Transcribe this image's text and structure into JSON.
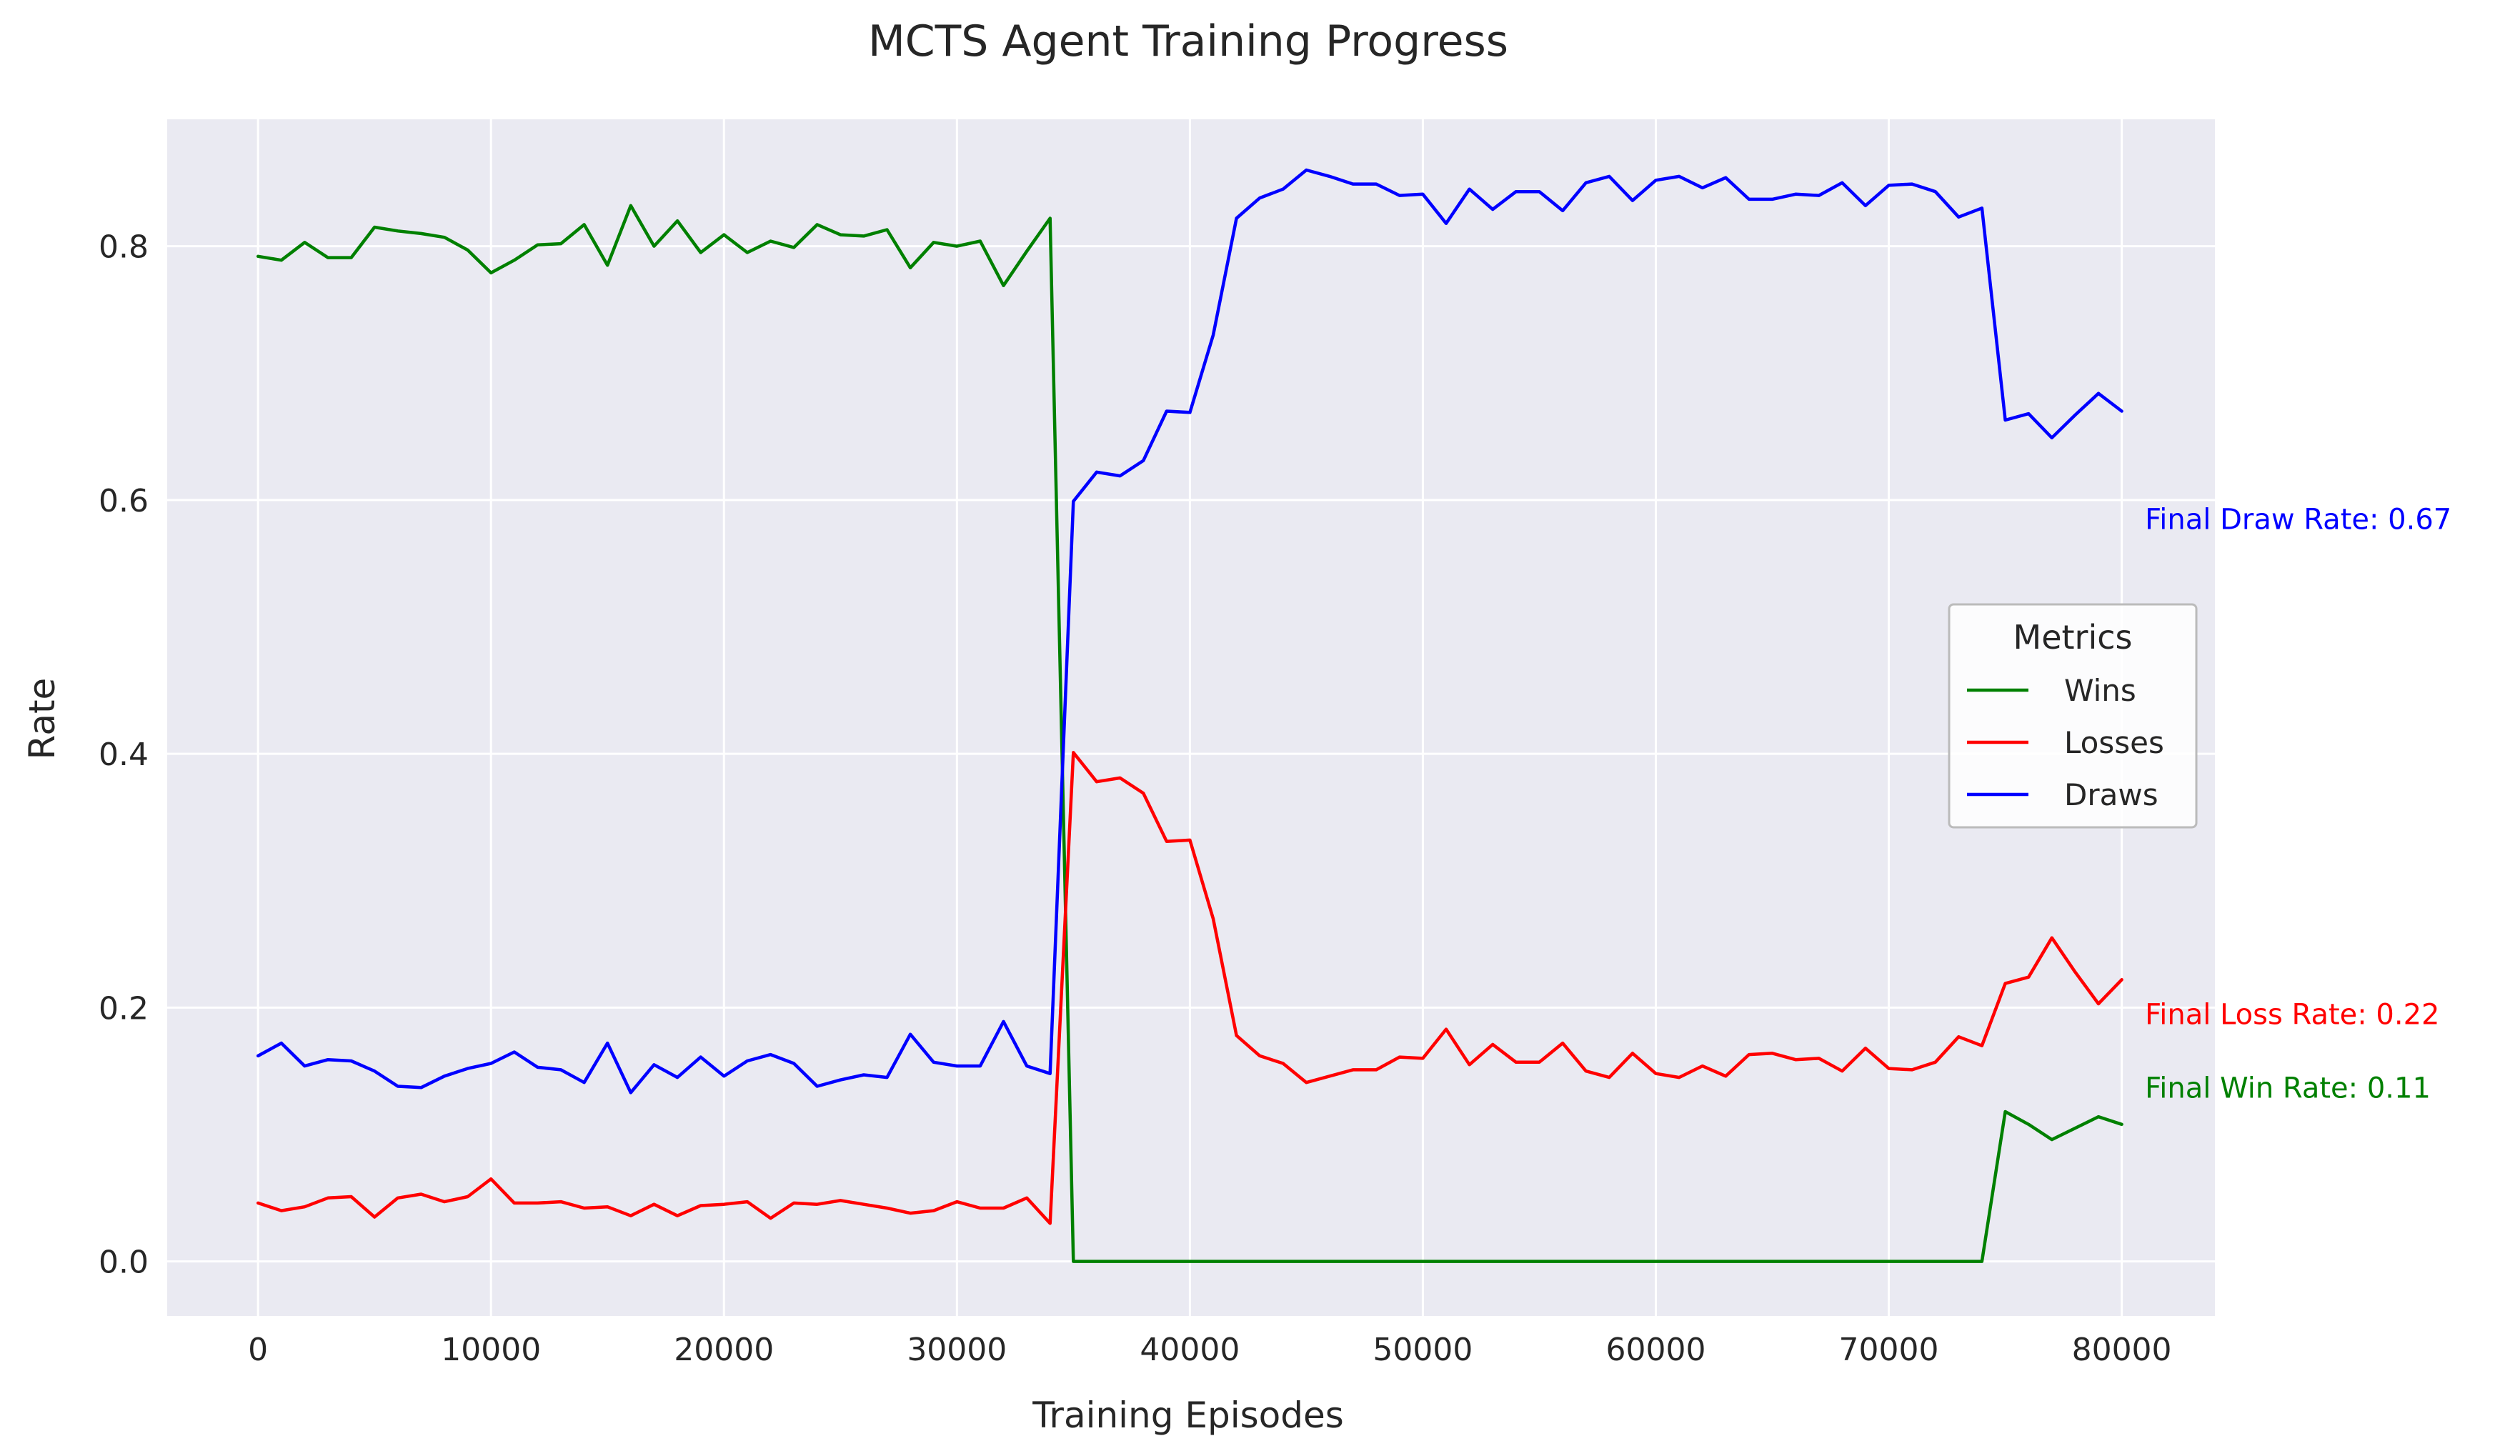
{
  "chart_data": {
    "type": "line",
    "title": "MCTS Agent Training Progress",
    "xlabel": "Training Episodes",
    "ylabel": "Rate",
    "xlim": [
      -3900,
      84000
    ],
    "ylim": [
      -0.043,
      0.9
    ],
    "xticks": [
      0,
      10000,
      20000,
      30000,
      40000,
      50000,
      60000,
      70000,
      80000
    ],
    "yticks": [
      0.0,
      0.2,
      0.4,
      0.6,
      0.8
    ],
    "xtick_labels": [
      "0",
      "10000",
      "20000",
      "30000",
      "40000",
      "50000",
      "60000",
      "70000",
      "80000"
    ],
    "ytick_labels": [
      "0.0",
      "0.2",
      "0.4",
      "0.6",
      "0.8"
    ],
    "grid": true,
    "background": "#eaeaf2",
    "x": [
      0,
      1000,
      2000,
      3000,
      4000,
      5000,
      6000,
      7000,
      8000,
      9000,
      10000,
      11000,
      12000,
      13000,
      14000,
      15000,
      16000,
      17000,
      18000,
      19000,
      20000,
      21000,
      22000,
      23000,
      24000,
      25000,
      26000,
      27000,
      28000,
      29000,
      30000,
      31000,
      32000,
      33000,
      34000,
      35000,
      36000,
      37000,
      38000,
      39000,
      40000,
      41000,
      42000,
      43000,
      44000,
      45000,
      46000,
      47000,
      48000,
      49000,
      50000,
      51000,
      52000,
      53000,
      54000,
      55000,
      56000,
      57000,
      58000,
      59000,
      60000,
      61000,
      62000,
      63000,
      64000,
      65000,
      66000,
      67000,
      68000,
      69000,
      70000,
      71000,
      72000,
      73000,
      74000,
      75000,
      76000,
      77000,
      78000,
      79000,
      80000
    ],
    "series": [
      {
        "name": "Wins",
        "color": "#008000",
        "values": [
          0.792,
          0.789,
          0.803,
          0.791,
          0.791,
          0.815,
          0.812,
          0.81,
          0.807,
          0.797,
          0.779,
          0.789,
          0.801,
          0.802,
          0.817,
          0.785,
          0.832,
          0.8,
          0.82,
          0.795,
          0.809,
          0.795,
          0.804,
          0.799,
          0.817,
          0.809,
          0.808,
          0.813,
          0.783,
          0.803,
          0.8,
          0.804,
          0.769,
          0.796,
          0.822,
          0.0,
          0.0,
          0.0,
          0.0,
          0.0,
          0.0,
          0.0,
          0.0,
          0.0,
          0.0,
          0.0,
          0.0,
          0.0,
          0.0,
          0.0,
          0.0,
          0.0,
          0.0,
          0.0,
          0.0,
          0.0,
          0.0,
          0.0,
          0.0,
          0.0,
          0.0,
          0.0,
          0.0,
          0.0,
          0.0,
          0.0,
          0.0,
          0.0,
          0.0,
          0.0,
          0.0,
          0.0,
          0.0,
          0.0,
          0.0,
          0.118,
          0.108,
          0.096,
          0.105,
          0.114,
          0.108
        ]
      },
      {
        "name": "Losses",
        "color": "#ff0000",
        "values": [
          0.046,
          0.04,
          0.043,
          0.05,
          0.051,
          0.035,
          0.05,
          0.053,
          0.047,
          0.051,
          0.065,
          0.046,
          0.046,
          0.047,
          0.042,
          0.043,
          0.036,
          0.045,
          0.036,
          0.044,
          0.045,
          0.047,
          0.034,
          0.046,
          0.045,
          0.048,
          0.045,
          0.042,
          0.038,
          0.04,
          0.047,
          0.042,
          0.042,
          0.05,
          0.03,
          0.401,
          0.378,
          0.381,
          0.369,
          0.331,
          0.332,
          0.27,
          0.178,
          0.162,
          0.156,
          0.141,
          0.146,
          0.151,
          0.151,
          0.161,
          0.16,
          0.183,
          0.155,
          0.171,
          0.157,
          0.157,
          0.172,
          0.15,
          0.145,
          0.164,
          0.148,
          0.145,
          0.154,
          0.146,
          0.163,
          0.164,
          0.159,
          0.16,
          0.15,
          0.168,
          0.152,
          0.151,
          0.157,
          0.177,
          0.17,
          0.219,
          0.224,
          0.255,
          0.228,
          0.203,
          0.222
        ]
      },
      {
        "name": "Draws",
        "color": "#0000ff",
        "values": [
          0.162,
          0.172,
          0.154,
          0.159,
          0.158,
          0.15,
          0.138,
          0.137,
          0.146,
          0.152,
          0.156,
          0.165,
          0.153,
          0.151,
          0.141,
          0.172,
          0.133,
          0.155,
          0.145,
          0.161,
          0.146,
          0.158,
          0.163,
          0.156,
          0.138,
          0.143,
          0.147,
          0.145,
          0.179,
          0.157,
          0.154,
          0.154,
          0.189,
          0.154,
          0.148,
          0.599,
          0.622,
          0.619,
          0.631,
          0.67,
          0.669,
          0.73,
          0.822,
          0.838,
          0.845,
          0.86,
          0.855,
          0.849,
          0.849,
          0.84,
          0.841,
          0.818,
          0.845,
          0.829,
          0.843,
          0.843,
          0.828,
          0.85,
          0.855,
          0.836,
          0.852,
          0.855,
          0.846,
          0.854,
          0.837,
          0.837,
          0.841,
          0.84,
          0.85,
          0.832,
          0.848,
          0.849,
          0.843,
          0.823,
          0.83,
          0.663,
          0.668,
          0.649,
          0.667,
          0.684,
          0.67
        ]
      }
    ],
    "legend": {
      "title": "Metrics",
      "placement": "center-right",
      "entries": [
        "Wins",
        "Losses",
        "Draws"
      ]
    },
    "annotations": [
      {
        "text": "Final Draw Rate: 0.67",
        "x": 81000,
        "y": 0.585,
        "color": "#0000ff"
      },
      {
        "text": "Final Loss Rate: 0.22",
        "x": 81000,
        "y": 0.195,
        "color": "#ff0000"
      },
      {
        "text": "Final Win Rate: 0.11",
        "x": 81000,
        "y": 0.137,
        "color": "#008000"
      }
    ]
  }
}
